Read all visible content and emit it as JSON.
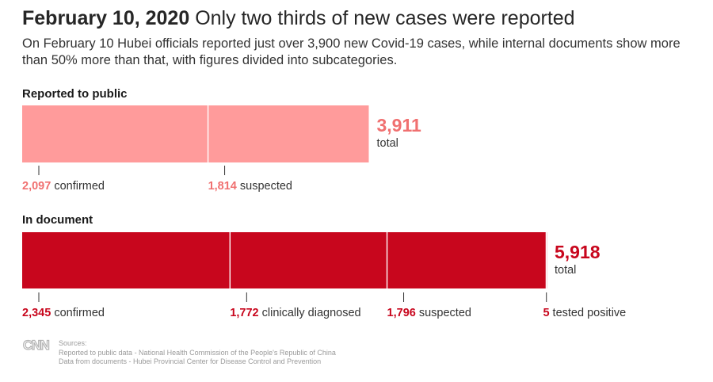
{
  "header": {
    "date": "February 10, 2020",
    "headline": "Only two thirds of new cases were reported",
    "subtitle": "On February 10 Hubei officials reported just over 3,900 new Covid-19 cases, while internal documents show more than 50% more than that, with figures divided into subcategories."
  },
  "chart_data": {
    "type": "bar",
    "orientation": "horizontal-stacked",
    "colors": {
      "reported": "#ff9b9b",
      "reported_text": "#f07070",
      "document": "#c8061d",
      "document_text": "#c8061d"
    },
    "bars": [
      {
        "label": "Reported to public",
        "total": 3911,
        "total_text": "3,911",
        "total_word": "total",
        "color_key": "reported",
        "segments": [
          {
            "value": 2097,
            "value_text": "2,097",
            "label": "confirmed"
          },
          {
            "value": 1814,
            "value_text": "1,814",
            "label": "suspected"
          }
        ]
      },
      {
        "label": "In document",
        "total": 5918,
        "total_text": "5,918",
        "total_word": "total",
        "color_key": "document",
        "segments": [
          {
            "value": 2345,
            "value_text": "2,345",
            "label": "confirmed"
          },
          {
            "value": 1772,
            "value_text": "1,772",
            "label": "clinically diagnosed"
          },
          {
            "value": 1796,
            "value_text": "1,796",
            "label": "suspected"
          },
          {
            "value": 5,
            "value_text": "5",
            "label": "tested positive"
          }
        ]
      }
    ]
  },
  "footer": {
    "logo": "CNN",
    "sources_title": "Sources:",
    "source_1": "Reported to public data - National Health Commission of the People's Republic of China",
    "source_2": "Data from documents - Hubei Provincial Center for Disease Control and Prevention"
  }
}
